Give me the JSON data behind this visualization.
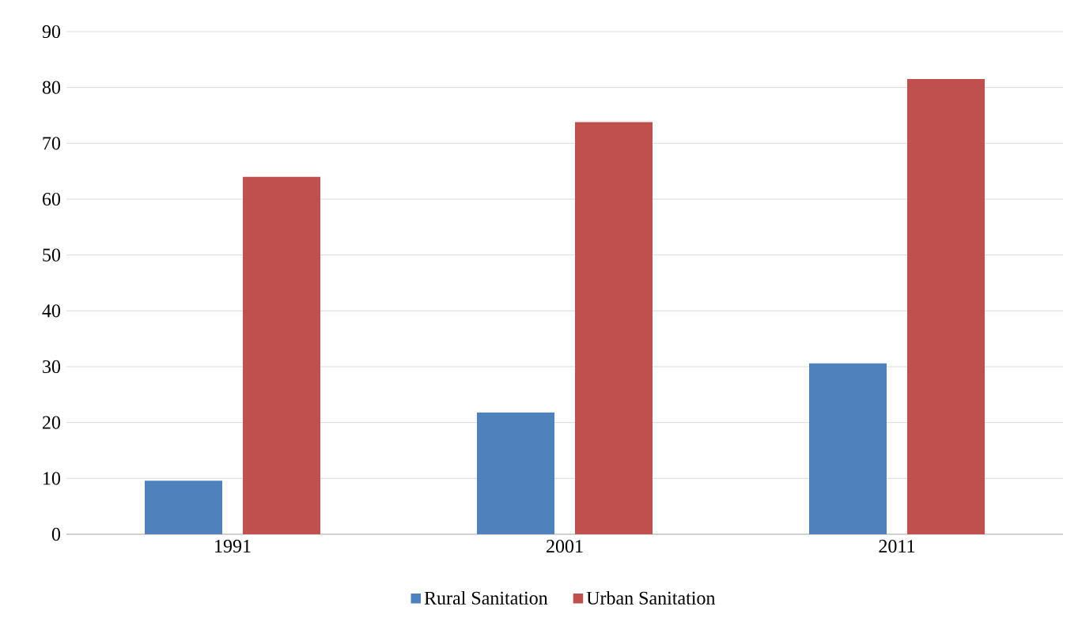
{
  "chart_data": {
    "type": "bar",
    "categories": [
      "1991",
      "2001",
      "2011"
    ],
    "series": [
      {
        "name": "Rural Sanitation",
        "color": "#4f81bd",
        "values": [
          9.6,
          21.8,
          30.6
        ]
      },
      {
        "name": "Urban Sanitation",
        "color": "#c0504d",
        "values": [
          64.0,
          73.8,
          81.5
        ]
      }
    ],
    "ylim": [
      0,
      90
    ],
    "yticks": [
      0,
      10,
      20,
      30,
      40,
      50,
      60,
      70,
      80,
      90
    ],
    "grid": "y",
    "legend": "bottom"
  }
}
